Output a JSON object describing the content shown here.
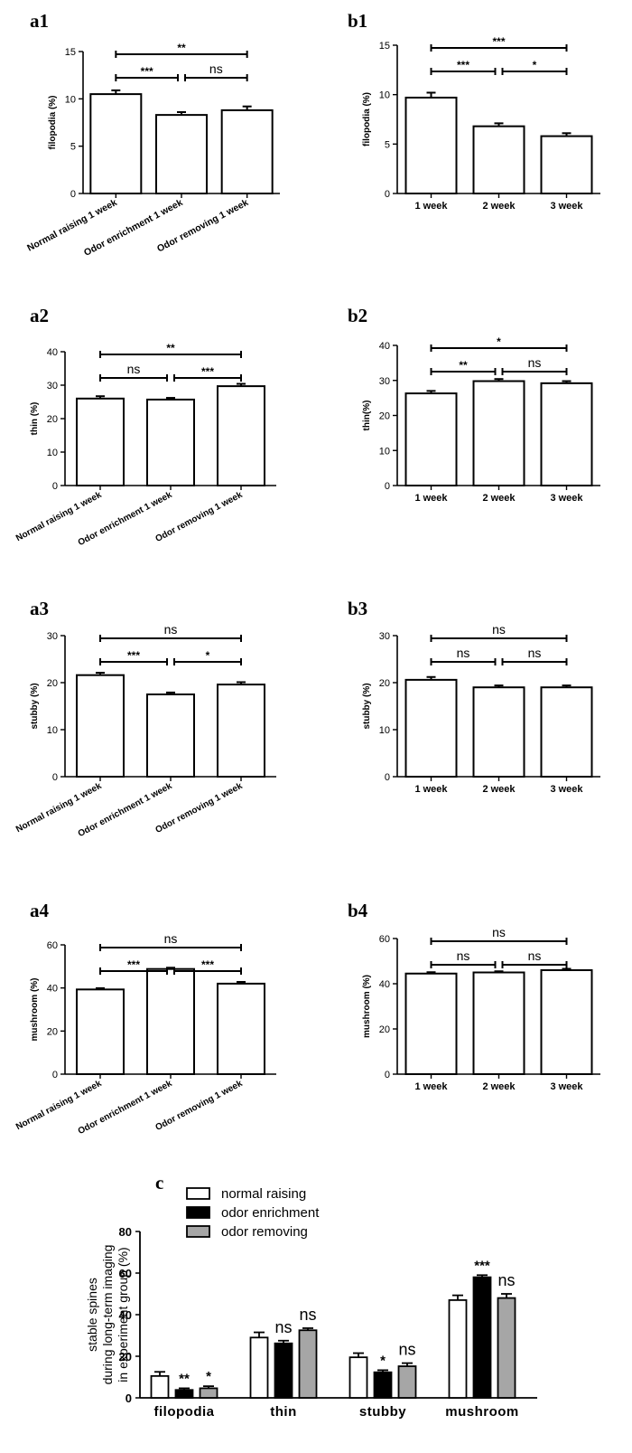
{
  "chart_data": [
    {
      "id": "a1",
      "panel_label": "a1",
      "type": "bar",
      "categories": [
        "Normal raising 1 week",
        "Odor enrichment 1 week",
        "Odor removing 1 week"
      ],
      "values": [
        10.5,
        8.3,
        8.8
      ],
      "errors": [
        0.4,
        0.3,
        0.4
      ],
      "ylabel": "filopodia (%)",
      "ylim": [
        0,
        15
      ],
      "yticks": [
        0,
        5,
        10,
        15
      ],
      "sig": [
        {
          "from": 0,
          "to": 2,
          "label": "**"
        },
        {
          "from": 0,
          "to": 1,
          "label": "***"
        },
        {
          "from": 1,
          "to": 2,
          "label": "ns"
        }
      ]
    },
    {
      "id": "b1",
      "panel_label": "b1",
      "type": "bar",
      "categories": [
        "1 week",
        "2 week",
        "3 week"
      ],
      "values": [
        9.7,
        6.8,
        5.8
      ],
      "errors": [
        0.5,
        0.3,
        0.3
      ],
      "ylabel": "filopodia (%)",
      "ylim": [
        0,
        15
      ],
      "yticks": [
        0,
        5,
        10,
        15
      ],
      "sig": [
        {
          "from": 0,
          "to": 2,
          "label": "***"
        },
        {
          "from": 0,
          "to": 1,
          "label": "***"
        },
        {
          "from": 1,
          "to": 2,
          "label": "*"
        }
      ]
    },
    {
      "id": "a2",
      "panel_label": "a2",
      "type": "bar",
      "categories": [
        "Normal raising 1 week",
        "Odor enrichment 1 week",
        "Odor removing 1 week"
      ],
      "values": [
        26.0,
        25.7,
        29.7
      ],
      "errors": [
        0.7,
        0.5,
        0.7
      ],
      "ylabel": "thin (%)",
      "ylim": [
        0,
        40
      ],
      "yticks": [
        0,
        10,
        20,
        30,
        40
      ],
      "sig": [
        {
          "from": 0,
          "to": 2,
          "label": "**"
        },
        {
          "from": 0,
          "to": 1,
          "label": "ns"
        },
        {
          "from": 1,
          "to": 2,
          "label": "***"
        }
      ]
    },
    {
      "id": "b2",
      "panel_label": "b2",
      "type": "bar",
      "categories": [
        "1 week",
        "2 week",
        "3 week"
      ],
      "values": [
        26.3,
        29.8,
        29.2
      ],
      "errors": [
        0.7,
        0.6,
        0.6
      ],
      "ylabel": "thin(%)",
      "ylim": [
        0,
        40
      ],
      "yticks": [
        0,
        10,
        20,
        30,
        40
      ],
      "sig": [
        {
          "from": 0,
          "to": 2,
          "label": "*"
        },
        {
          "from": 0,
          "to": 1,
          "label": "**"
        },
        {
          "from": 1,
          "to": 2,
          "label": "ns"
        }
      ]
    },
    {
      "id": "a3",
      "panel_label": "a3",
      "type": "bar",
      "categories": [
        "Normal raising 1 week",
        "Odor enrichment 1 week",
        "Odor removing 1 week"
      ],
      "values": [
        21.6,
        17.5,
        19.6
      ],
      "errors": [
        0.5,
        0.4,
        0.5
      ],
      "ylabel": "stubby (%)",
      "ylim": [
        0,
        30
      ],
      "yticks": [
        0,
        10,
        20,
        30
      ],
      "sig": [
        {
          "from": 0,
          "to": 2,
          "label": "ns"
        },
        {
          "from": 0,
          "to": 1,
          "label": "***"
        },
        {
          "from": 1,
          "to": 2,
          "label": "*"
        }
      ]
    },
    {
      "id": "b3",
      "panel_label": "b3",
      "type": "bar",
      "categories": [
        "1 week",
        "2 week",
        "3 week"
      ],
      "values": [
        20.6,
        19.0,
        19.0
      ],
      "errors": [
        0.6,
        0.4,
        0.4
      ],
      "ylabel": "stubby (%)",
      "ylim": [
        0,
        30
      ],
      "yticks": [
        0,
        10,
        20,
        30
      ],
      "sig": [
        {
          "from": 0,
          "to": 2,
          "label": "ns"
        },
        {
          "from": 0,
          "to": 1,
          "label": "ns"
        },
        {
          "from": 1,
          "to": 2,
          "label": "ns"
        }
      ]
    },
    {
      "id": "a4",
      "panel_label": "a4",
      "type": "bar",
      "categories": [
        "Normal raising 1 week",
        "Odor enrichment 1 week",
        "Odor removing 1 week"
      ],
      "values": [
        39.3,
        48.8,
        42.0
      ],
      "errors": [
        0.6,
        0.6,
        0.8
      ],
      "ylabel": "mushroom (%)",
      "ylim": [
        0,
        60
      ],
      "yticks": [
        0,
        20,
        40,
        60
      ],
      "sig": [
        {
          "from": 0,
          "to": 2,
          "label": "ns"
        },
        {
          "from": 0,
          "to": 1,
          "label": "***"
        },
        {
          "from": 1,
          "to": 2,
          "label": "***"
        }
      ]
    },
    {
      "id": "b4",
      "panel_label": "b4",
      "type": "bar",
      "categories": [
        "1 week",
        "2 week",
        "3 week"
      ],
      "values": [
        44.5,
        45.0,
        46.0
      ],
      "errors": [
        0.6,
        0.5,
        0.6
      ],
      "ylabel": "mushroom (%)",
      "ylim": [
        0,
        60
      ],
      "yticks": [
        0,
        20,
        40,
        60
      ],
      "sig": [
        {
          "from": 0,
          "to": 2,
          "label": "ns"
        },
        {
          "from": 0,
          "to": 1,
          "label": "ns"
        },
        {
          "from": 1,
          "to": 2,
          "label": "ns"
        }
      ]
    },
    {
      "id": "c",
      "panel_label": "c",
      "type": "bar",
      "categories": [
        "filopodia",
        "thin",
        "stubby",
        "mushroom"
      ],
      "series": [
        {
          "name": "normal raising",
          "color": "#ffffff",
          "values": [
            10.5,
            29.0,
            19.5,
            47.0
          ],
          "errors": [
            2.0,
            2.5,
            2.0,
            2.3
          ]
        },
        {
          "name": "odor enrichment",
          "color": "#000000",
          "values": [
            3.8,
            26.2,
            12.3,
            58.0
          ],
          "errors": [
            0.8,
            1.3,
            1.0,
            1.0
          ]
        },
        {
          "name": "odor removing",
          "color": "#a6a6a6",
          "values": [
            4.6,
            32.5,
            15.2,
            48.0
          ],
          "errors": [
            1.0,
            1.0,
            1.5,
            2.0
          ]
        }
      ],
      "annotations": [
        {
          "category": 0,
          "series": 1,
          "label": "**"
        },
        {
          "category": 0,
          "series": 2,
          "label": "*"
        },
        {
          "category": 1,
          "series": 1,
          "label": "ns"
        },
        {
          "category": 1,
          "series": 2,
          "label": "ns"
        },
        {
          "category": 2,
          "series": 1,
          "label": "*"
        },
        {
          "category": 2,
          "series": 2,
          "label": "ns"
        },
        {
          "category": 3,
          "series": 1,
          "label": "***"
        },
        {
          "category": 3,
          "series": 2,
          "label": "ns"
        }
      ],
      "ylabel": [
        "stable spines",
        "during long-term imaging",
        "in experiment group (%)"
      ],
      "ylim": [
        0,
        80
      ],
      "yticks": [
        0,
        20,
        40,
        60,
        80
      ],
      "legend": "top-left"
    }
  ]
}
